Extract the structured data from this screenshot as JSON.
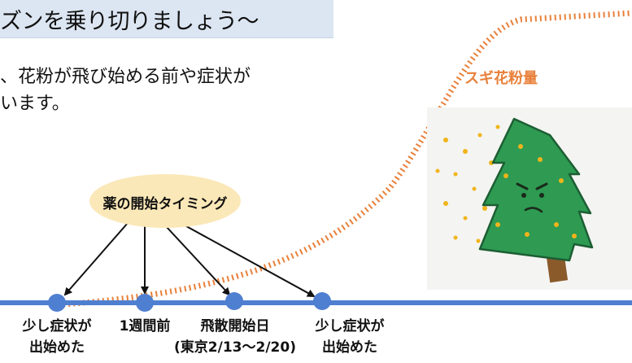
{
  "banner": {
    "title": "ズンを乗り切りましょう～"
  },
  "intro": {
    "line1": "、花粉が飛び始める前や症状が",
    "line2": "います。"
  },
  "curve": {
    "label": "スギ花粉量",
    "color": "#e8803a"
  },
  "timing": {
    "title": "薬の開始タイミング"
  },
  "timeline": {
    "color": "#4f7fd1",
    "points": [
      {
        "line1": "少し症状が",
        "line2": "出始めた"
      },
      {
        "line1": "1週間前",
        "line2": ""
      },
      {
        "line1": "飛散開始日",
        "line2": "(東京2/13〜2/20)"
      },
      {
        "line1": "少し症状が",
        "line2": "出始めた"
      }
    ]
  },
  "illustration": {
    "subject": "cedar-tree-icon",
    "tree_color": "#2e9a52",
    "pollen_color": "#f1b41a"
  }
}
